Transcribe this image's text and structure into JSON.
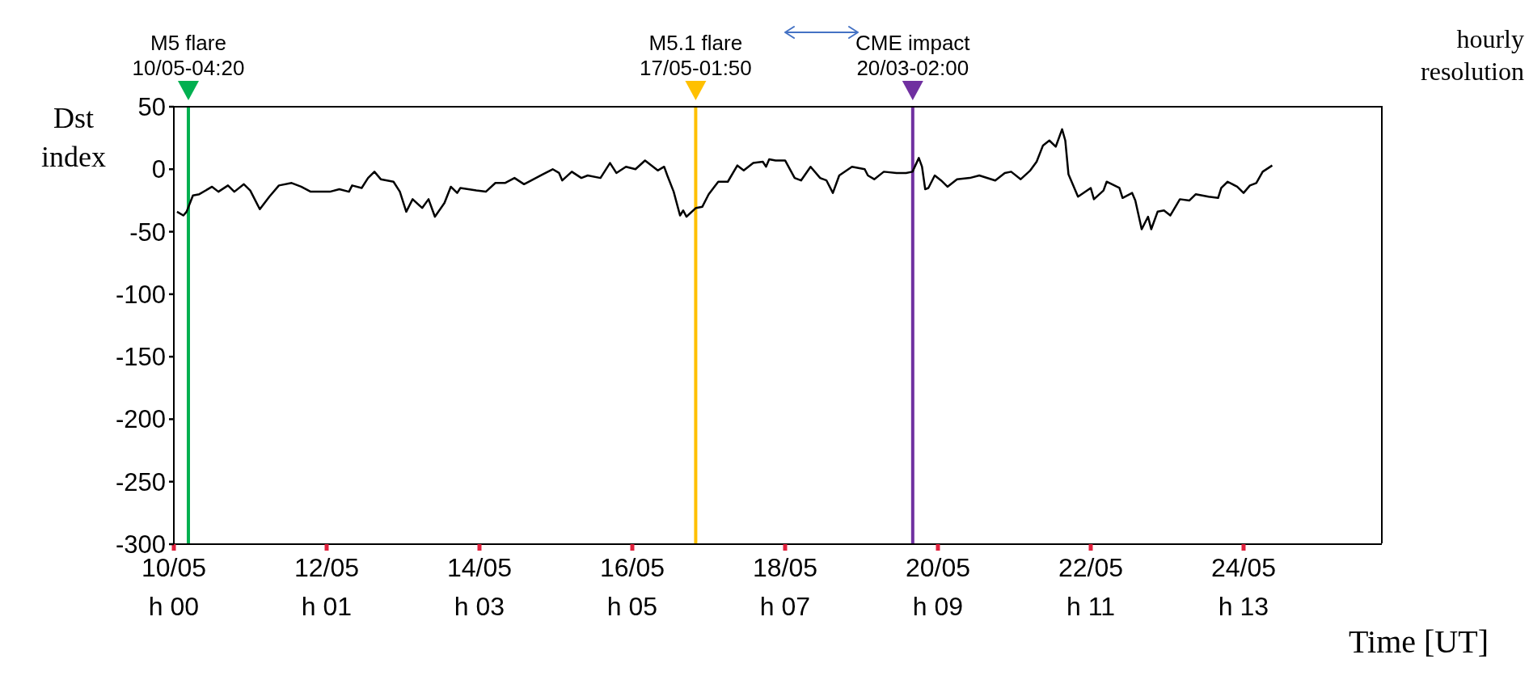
{
  "chart_data": {
    "type": "line",
    "xlabel": "Time [UT]",
    "ylabel": "Dst index",
    "annotations": [
      "hourly resolution"
    ],
    "x": [
      "--05-10T01:00",
      "--05-10T03:00",
      "--05-10T04:00",
      "--05-10T06:00",
      "--05-10T08:00",
      "--05-10T12:00",
      "--05-10T14:00",
      "--05-10T17:00",
      "--05-10T19:00",
      "--05-10T22:00",
      "--05-11T00:00",
      "--05-11T03:00",
      "--05-11T06:00",
      "--05-11T09:00",
      "--05-11T13:00",
      "--05-11T16:00",
      "--05-11T19:00",
      "--05-12T01:00",
      "--05-12T04:00",
      "--05-12T07:00",
      "--05-12T08:00",
      "--05-12T11:00",
      "--05-12T13:00",
      "--05-12T15:00",
      "--05-12T17:00",
      "--05-12T21:00",
      "--05-12T23:00",
      "--05-13T01:00",
      "--05-13T03:00",
      "--05-13T06:00",
      "--05-13T08:00",
      "--05-13T10:00",
      "--05-13T13:00",
      "--05-13T15:00",
      "--05-13T17:00",
      "--05-13T18:00",
      "--05-13T23:00",
      "--05-14T02:00",
      "--05-14T05:00",
      "--05-14T08:00",
      "--05-14T11:00",
      "--05-14T14:00",
      "--05-14T17:00",
      "--05-14T20:00",
      "--05-14T23:00",
      "--05-15T01:00",
      "--05-15T02:00",
      "--05-15T05:00",
      "--05-15T08:00",
      "--05-15T10:00",
      "--05-15T14:00",
      "--05-15T17:00",
      "--05-15T19:00",
      "--05-15T22:00",
      "--05-16T01:00",
      "--05-16T04:00",
      "--05-16T08:00",
      "--05-16T10:00",
      "--05-16T11:00",
      "--05-16T13:00",
      "--05-16T15:00",
      "--05-16T16:00",
      "--05-16T17:00",
      "--05-16T20:00",
      "--05-16T22:00",
      "--05-17T00:00",
      "--05-17T03:00",
      "--05-17T06:00",
      "--05-17T09:00",
      "--05-17T11:00",
      "--05-17T14:00",
      "--05-17T17:00",
      "--05-17T18:00",
      "--05-17T19:00",
      "--05-17T21:00",
      "--05-18T00:00",
      "--05-18T03:00",
      "--05-18T05:00",
      "--05-18T08:00",
      "--05-18T11:00",
      "--05-18T13:00",
      "--05-18T15:00",
      "--05-18T17:00",
      "--05-18T21:00",
      "--05-19T01:00",
      "--05-19T02:00",
      "--05-19T04:00",
      "--05-19T07:00",
      "--05-19T11:00",
      "--05-19T14:00",
      "--05-19T16:00",
      "--05-19T18:00",
      "--05-19T19:00",
      "--05-19T20:00",
      "--05-19T21:00",
      "--05-19T23:00",
      "--05-20T01:00",
      "--05-20T03:00",
      "--05-20T06:00",
      "--05-20T10:00",
      "--05-20T13:00",
      "--05-20T18:00",
      "--05-20T21:00",
      "--05-20T23:00",
      "--05-21T02:00",
      "--05-21T05:00",
      "--05-21T07:00",
      "--05-21T09:00",
      "--05-21T11:00",
      "--05-21T13:00",
      "--05-21T15:00",
      "--05-21T16:00",
      "--05-21T17:00",
      "--05-21T20:00",
      "--05-22T00:00",
      "--05-22T01:00",
      "--05-22T04:00",
      "--05-22T05:00",
      "--05-22T09:00",
      "--05-22T10:00",
      "--05-22T13:00",
      "--05-22T14:00",
      "--05-22T16:00",
      "--05-22T18:00",
      "--05-22T19:00",
      "--05-22T21:00",
      "--05-22T23:00",
      "--05-23T01:00",
      "--05-23T04:00",
      "--05-23T07:00",
      "--05-23T09:00",
      "--05-23T13:00",
      "--05-23T16:00",
      "--05-23T17:00",
      "--05-23T19:00",
      "--05-23T22:00",
      "--05-24T00:00",
      "--05-24T02:00",
      "--05-24T04:00",
      "--05-24T06:00",
      "--05-24T09:00"
    ],
    "series": [
      {
        "color": "#000000",
        "values": [
          -34,
          -37,
          -34,
          -21,
          -20,
          -14,
          -18,
          -13,
          -18,
          -12,
          -17,
          -32,
          -22,
          -13,
          -11,
          -14,
          -18,
          -18,
          -16,
          -18,
          -13,
          -15,
          -7,
          -2,
          -8,
          -10,
          -18,
          -34,
          -24,
          -31,
          -24,
          -38,
          -27,
          -14,
          -19,
          -15,
          -17,
          -18,
          -11,
          -11,
          -7,
          -12,
          -8,
          -4,
          0,
          -3,
          -9,
          -2,
          -7,
          -5,
          -7,
          5,
          -3,
          2,
          0,
          7,
          -1,
          2,
          -5,
          -18,
          -37,
          -33,
          -38,
          -31,
          -30,
          -20,
          -10,
          -10,
          3,
          -1,
          5,
          6,
          2,
          8,
          7,
          7,
          -7,
          -9,
          2,
          -7,
          -9,
          -19,
          -5,
          2,
          0,
          -5,
          -8,
          -2,
          -3,
          -3,
          -2,
          9,
          2,
          -16,
          -15,
          -5,
          -9,
          -14,
          -8,
          -7,
          -5,
          -9,
          -3,
          -2,
          -8,
          -1,
          6,
          19,
          23,
          18,
          32,
          23,
          -4,
          -22,
          -15,
          -24,
          -17,
          -10,
          -15,
          -23,
          -19,
          -25,
          -48,
          -38,
          -48,
          -34,
          -33,
          -37,
          -24,
          -25,
          -20,
          -22,
          -23,
          -15,
          -10,
          -14,
          -19,
          -13,
          -11,
          -2,
          3
        ]
      }
    ],
    "xlim": [
      "--05-10",
      "--05-25T19:26"
    ],
    "xticks": [
      {
        "value": "--05-10",
        "label": "10/05\nh 00"
      },
      {
        "value": "--05-12",
        "label": "12/05\nh 01"
      },
      {
        "value": "--05-14",
        "label": "14/05\nh 03"
      },
      {
        "value": "--05-16",
        "label": "16/05\nh 05"
      },
      {
        "value": "--05-18",
        "label": "18/05\nh 07"
      },
      {
        "value": "--05-20",
        "label": "20/05\nh 09"
      },
      {
        "value": "--05-22",
        "label": "22/05\nh 11"
      },
      {
        "value": "--05-24",
        "label": "24/05\nh 13"
      }
    ],
    "ylim": [
      -300,
      50
    ],
    "yticks": [
      50,
      0,
      -50,
      -100,
      -150,
      -200,
      -250,
      -300
    ],
    "ref_lines": [
      {
        "axis": "x",
        "value": "--05-10T04:34",
        "label": "M5 flare\n10/05-04:20",
        "color": "#00b050"
      },
      {
        "axis": "x",
        "value": "--05-16T19:55",
        "label": "M5.1 flare\n17/05-01:50",
        "color": "#ffc000"
      },
      {
        "axis": "x",
        "value": "--05-19T16:05",
        "label": "CME impact\n20/03-02:00",
        "color": "#7030a0"
      }
    ]
  }
}
